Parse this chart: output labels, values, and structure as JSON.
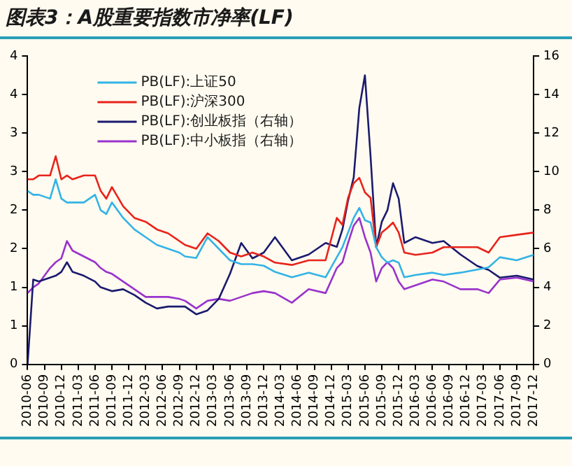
{
  "chart_data": {
    "type": "line",
    "title": "图表3：A股重要指数市净率(LF)",
    "x": [
      "2010-06",
      "2010-07",
      "2010-08",
      "2010-10",
      "2010-11",
      "2010-12",
      "2011-01",
      "2011-02",
      "2011-04",
      "2011-06",
      "2011-07",
      "2011-08",
      "2011-09",
      "2011-11",
      "2012-01",
      "2012-03",
      "2012-05",
      "2012-07",
      "2012-09",
      "2012-10",
      "2012-12",
      "2013-02",
      "2013-04",
      "2013-06",
      "2013-08",
      "2013-10",
      "2013-12",
      "2014-02",
      "2014-05",
      "2014-08",
      "2014-11",
      "2015-01",
      "2015-02",
      "2015-03",
      "2015-04",
      "2015-05",
      "2015-06",
      "2015-07",
      "2015-08",
      "2015-09",
      "2015-10",
      "2015-11",
      "2015-12",
      "2016-01",
      "2016-03",
      "2016-06",
      "2016-08",
      "2016-11",
      "2017-02",
      "2017-04",
      "2017-06",
      "2017-09",
      "2017-12"
    ],
    "series": [
      {
        "name": "PB(LF):上证50",
        "color": "#33b3e6",
        "values": [
          2.25,
          2.2,
          2.2,
          2.15,
          2.4,
          2.15,
          2.1,
          2.1,
          2.1,
          2.2,
          2.0,
          1.95,
          2.1,
          1.9,
          1.75,
          1.65,
          1.55,
          1.5,
          1.45,
          1.4,
          1.38,
          1.65,
          1.5,
          1.35,
          1.3,
          1.3,
          1.28,
          1.2,
          1.13,
          1.19,
          1.13,
          1.39,
          1.52,
          1.71,
          1.9,
          2.03,
          1.87,
          1.84,
          1.52,
          1.39,
          1.32,
          1.35,
          1.32,
          1.13,
          1.16,
          1.19,
          1.16,
          1.19,
          1.23,
          1.26,
          1.39,
          1.35,
          1.42
        ]
      },
      {
        "name": "PB(LF):沪深300",
        "color": "#e8231b",
        "values": [
          2.4,
          2.4,
          2.45,
          2.45,
          2.7,
          2.4,
          2.45,
          2.4,
          2.45,
          2.45,
          2.25,
          2.15,
          2.3,
          2.05,
          1.9,
          1.85,
          1.75,
          1.7,
          1.6,
          1.55,
          1.5,
          1.7,
          1.6,
          1.45,
          1.4,
          1.45,
          1.4,
          1.32,
          1.29,
          1.35,
          1.35,
          1.9,
          1.81,
          2.16,
          2.35,
          2.42,
          2.23,
          2.16,
          1.52,
          1.71,
          1.77,
          1.84,
          1.71,
          1.45,
          1.42,
          1.45,
          1.52,
          1.52,
          1.52,
          1.45,
          1.65,
          1.68,
          1.71
        ]
      },
      {
        "name": "PB(LF):创业板指（右轴）",
        "color": "#1a1a6e",
        "axis": "y2",
        "values": [
          0,
          4.4,
          4.3,
          4.5,
          4.6,
          4.8,
          5.3,
          4.8,
          4.6,
          4.3,
          4.0,
          3.9,
          3.8,
          3.9,
          3.6,
          3.2,
          2.9,
          3.0,
          3.0,
          3.0,
          2.6,
          2.8,
          3.4,
          4.7,
          6.3,
          5.5,
          5.8,
          6.6,
          5.4,
          5.7,
          6.3,
          6.1,
          7.0,
          8.5,
          9.7,
          13.3,
          15.0,
          10.8,
          6.1,
          7.4,
          8.0,
          9.4,
          8.6,
          6.3,
          6.6,
          6.3,
          6.4,
          5.7,
          5.1,
          4.9,
          4.5,
          4.6,
          4.4
        ]
      },
      {
        "name": "PB(LF):中小板指（右轴）",
        "color": "#9933cc",
        "axis": "y2",
        "values": [
          3.7,
          4.0,
          4.2,
          5.0,
          5.3,
          5.5,
          6.4,
          5.9,
          5.6,
          5.3,
          5.0,
          4.8,
          4.7,
          4.3,
          3.9,
          3.5,
          3.5,
          3.5,
          3.4,
          3.3,
          2.9,
          3.3,
          3.4,
          3.3,
          3.5,
          3.7,
          3.8,
          3.7,
          3.2,
          3.9,
          3.7,
          5.0,
          5.3,
          6.3,
          7.2,
          7.6,
          6.6,
          5.8,
          4.3,
          5.0,
          5.3,
          5.0,
          4.3,
          3.9,
          4.1,
          4.4,
          4.3,
          3.9,
          3.9,
          3.7,
          4.4,
          4.5,
          4.3
        ]
      }
    ],
    "xlim": [
      "2010-06",
      "2017-12"
    ],
    "xticks": [
      "2010-06",
      "2010-09",
      "2010-12",
      "2011-03",
      "2011-06",
      "2011-09",
      "2011-12",
      "2012-03",
      "2012-06",
      "2012-09",
      "2012-12",
      "2013-03",
      "2013-06",
      "2013-09",
      "2013-12",
      "2014-03",
      "2014-06",
      "2014-09",
      "2014-12",
      "2015-03",
      "2015-06",
      "2015-09",
      "2015-12",
      "2016-03",
      "2016-06",
      "2016-09",
      "2016-12",
      "2017-03",
      "2017-06",
      "2017-09",
      "2017-12"
    ],
    "ylim": [
      0,
      4
    ],
    "yticks": [
      0,
      {
        "value": 0.5,
        "label": "1"
      },
      1,
      {
        "value": 1.5,
        "label": "2"
      },
      2,
      {
        "value": 2.5,
        "label": "3"
      },
      3,
      {
        "value": 3.5,
        "label": "4"
      },
      4
    ],
    "y2lim": [
      0,
      16
    ],
    "y2ticks": [
      0,
      2,
      4,
      6,
      8,
      10,
      12,
      14,
      16
    ],
    "grid": false,
    "legend": "top left",
    "marker": "none",
    "line_style": "solid"
  }
}
